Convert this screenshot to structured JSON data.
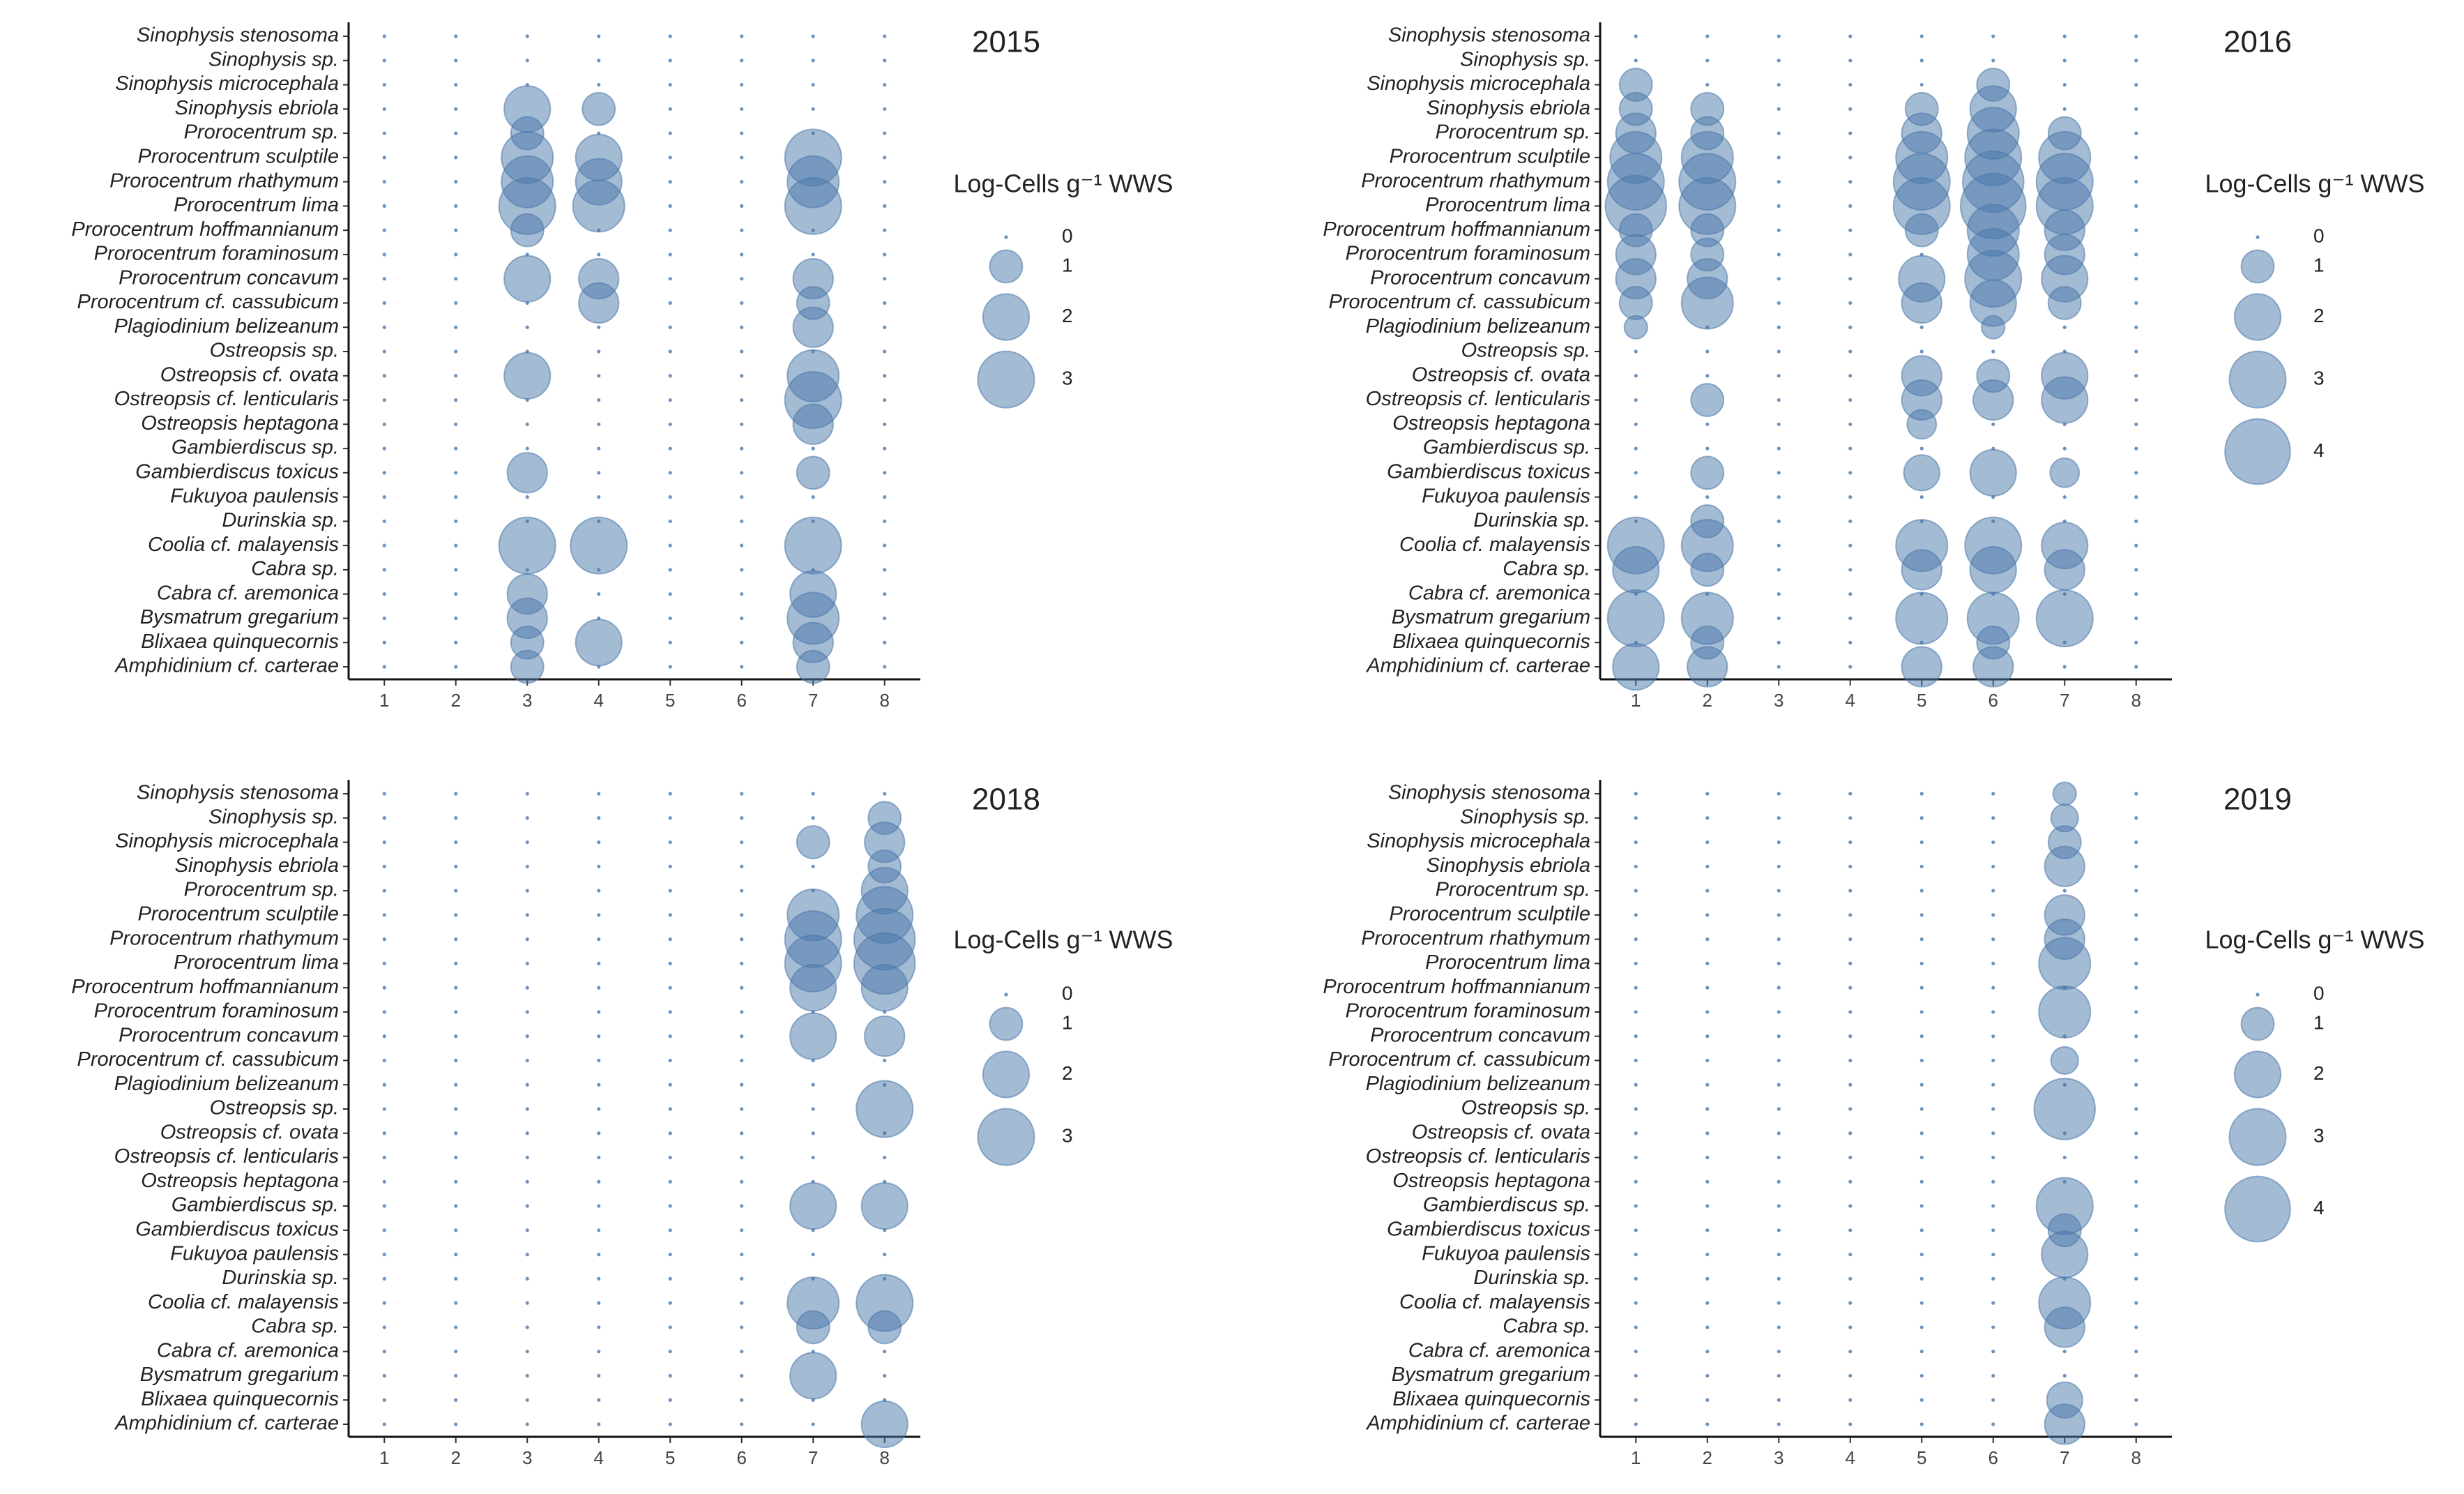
{
  "chart_data": [
    {
      "type": "bubble",
      "title": "2015",
      "categories": [
        "Sinophysis stenosoma",
        "Sinophysis sp.",
        "Sinophysis microcephala",
        "Sinophysis ebriola",
        "Prorocentrum sp.",
        "Prorocentrum sculptile",
        "Prorocentrum rhathymum",
        "Prorocentrum lima",
        "Prorocentrum hoffmannianum",
        "Prorocentrum foraminosum",
        "Prorocentrum concavum",
        "Prorocentrum cf. cassubicum",
        "Plagiodinium belizeanum",
        "Ostreopsis sp.",
        "Ostreopsis cf. ovata",
        "Ostreopsis cf. lenticularis",
        "Ostreopsis heptagona",
        "Gambierdiscus sp.",
        "Gambierdiscus toxicus",
        "Fukuyoa paulensis",
        "Durinskia sp.",
        "Coolia cf. malayensis",
        "Cabra sp.",
        "Cabra cf. aremonica",
        "Bysmatrum gregarium",
        "Blixaea quinquecornis",
        "Amphidinium cf. carterae"
      ],
      "x": [
        1,
        2,
        3,
        4,
        5,
        6,
        7,
        8
      ],
      "xlim": [
        0.5,
        8.5
      ],
      "xticks": [
        1,
        2,
        3,
        4,
        5,
        6,
        7,
        8
      ],
      "color": "#4a78aa",
      "values": [
        [
          0,
          0,
          0,
          0,
          0,
          0,
          0,
          0
        ],
        [
          0,
          0,
          0,
          0,
          0,
          0,
          0,
          0
        ],
        [
          0,
          0,
          0,
          0,
          0,
          0,
          0,
          0
        ],
        [
          0,
          0,
          2,
          1,
          0,
          0,
          0,
          0
        ],
        [
          0,
          0,
          1,
          0,
          0,
          0,
          0,
          0
        ],
        [
          0,
          0,
          2.5,
          2,
          0,
          0,
          3,
          0
        ],
        [
          0,
          0,
          2.5,
          2,
          0,
          0,
          2.5,
          0
        ],
        [
          0,
          0,
          3,
          2.5,
          0,
          0,
          3,
          0
        ],
        [
          0,
          0,
          1,
          0,
          0,
          0,
          0,
          0
        ],
        [
          0,
          0,
          0,
          0,
          0,
          0,
          0,
          0
        ],
        [
          0,
          0,
          2,
          1.5,
          0,
          0,
          1.5,
          0
        ],
        [
          0,
          0,
          0,
          1.5,
          0,
          0,
          1,
          0
        ],
        [
          0,
          0,
          0,
          0,
          0,
          0,
          1.5,
          0
        ],
        [
          0,
          0,
          0,
          0,
          0,
          0,
          0,
          0
        ],
        [
          0,
          0,
          2,
          0,
          0,
          0,
          2.5,
          0
        ],
        [
          0,
          0,
          0,
          0,
          0,
          0,
          3,
          0
        ],
        [
          0,
          0,
          0,
          0,
          0,
          0,
          1.5,
          0
        ],
        [
          0,
          0,
          0,
          0,
          0,
          0,
          0,
          0
        ],
        [
          0,
          0,
          1.5,
          0,
          0,
          0,
          1,
          0
        ],
        [
          0,
          0,
          0,
          0,
          0,
          0,
          0,
          0
        ],
        [
          0,
          0,
          0,
          0,
          0,
          0,
          0,
          0
        ],
        [
          0,
          0,
          3,
          3,
          0,
          0,
          3,
          0
        ],
        [
          0,
          0,
          0,
          0,
          0,
          0,
          0,
          0
        ],
        [
          0,
          0,
          1.5,
          0,
          0,
          0,
          2,
          0
        ],
        [
          0,
          0,
          1.5,
          0,
          0,
          0,
          2.5,
          0
        ],
        [
          0,
          0,
          1,
          2,
          0,
          0,
          1.5,
          0
        ],
        [
          0,
          0,
          1,
          0,
          0,
          0,
          1,
          0
        ]
      ],
      "size_legend_title": "Log-Cells g⁻¹ WWS",
      "size_legend": [
        0,
        1,
        2,
        3
      ]
    },
    {
      "type": "bubble",
      "title": "2016",
      "categories": [
        "Sinophysis stenosoma",
        "Sinophysis sp.",
        "Sinophysis microcephala",
        "Sinophysis ebriola",
        "Prorocentrum sp.",
        "Prorocentrum sculptile",
        "Prorocentrum rhathymum",
        "Prorocentrum lima",
        "Prorocentrum hoffmannianum",
        "Prorocentrum foraminosum",
        "Prorocentrum concavum",
        "Prorocentrum cf. cassubicum",
        "Plagiodinium belizeanum",
        "Ostreopsis sp.",
        "Ostreopsis cf. ovata",
        "Ostreopsis cf. lenticularis",
        "Ostreopsis heptagona",
        "Gambierdiscus sp.",
        "Gambierdiscus toxicus",
        "Fukuyoa paulensis",
        "Durinskia sp.",
        "Coolia cf. malayensis",
        "Cabra sp.",
        "Cabra cf. aremonica",
        "Bysmatrum gregarium",
        "Blixaea quinquecornis",
        "Amphidinium cf. carterae"
      ],
      "x": [
        1,
        2,
        3,
        4,
        5,
        6,
        7,
        8
      ],
      "xlim": [
        0.5,
        8.5
      ],
      "xticks": [
        1,
        2,
        3,
        4,
        5,
        6,
        7,
        8
      ],
      "color": "#4a78aa",
      "values": [
        [
          0,
          0,
          0,
          0,
          0,
          0,
          0,
          0
        ],
        [
          0,
          0,
          0,
          0,
          0,
          0,
          0,
          0
        ],
        [
          1,
          0,
          0,
          0,
          0,
          1,
          0,
          0
        ],
        [
          1,
          1,
          0,
          0,
          1,
          2,
          0,
          0
        ],
        [
          1.5,
          1,
          0,
          0,
          1.5,
          2.5,
          1,
          0
        ],
        [
          2.5,
          2.5,
          0,
          0,
          2.5,
          3,
          2.5,
          0
        ],
        [
          3,
          3,
          0,
          0,
          3,
          3.5,
          3,
          0
        ],
        [
          3.5,
          3,
          0,
          0,
          3,
          4,
          3,
          0
        ],
        [
          1,
          1,
          0,
          0,
          1,
          2.5,
          1.5,
          0
        ],
        [
          1.5,
          1,
          0,
          0,
          0,
          2.5,
          1.5,
          0
        ],
        [
          1.5,
          1.5,
          0,
          0,
          2,
          3,
          2,
          0
        ],
        [
          1,
          2.5,
          0,
          0,
          1.5,
          2,
          1,
          0
        ],
        [
          0.5,
          0,
          0,
          0,
          0,
          0.5,
          0,
          0
        ],
        [
          0,
          0,
          0,
          0,
          0,
          0,
          0,
          0
        ],
        [
          0,
          0,
          0,
          0,
          1.5,
          1,
          2,
          0
        ],
        [
          0,
          1,
          0,
          0,
          1.5,
          1.5,
          2,
          0
        ],
        [
          0,
          0,
          0,
          0,
          0.8,
          0,
          0,
          0
        ],
        [
          0,
          0,
          0,
          0,
          0,
          0,
          0,
          0
        ],
        [
          0,
          1,
          0,
          0,
          1.2,
          2,
          0.8,
          0
        ],
        [
          0,
          0,
          0,
          0,
          0,
          0,
          0,
          0
        ],
        [
          0,
          1,
          0,
          0,
          0,
          0,
          0,
          0
        ],
        [
          3,
          2.5,
          0,
          0,
          2.5,
          3,
          2,
          0
        ],
        [
          2,
          1,
          0,
          0,
          1.5,
          2,
          1.5,
          0
        ],
        [
          0,
          0,
          0,
          0,
          0,
          0,
          0,
          0
        ],
        [
          3,
          2.5,
          0,
          0,
          2.5,
          2.5,
          3,
          0
        ],
        [
          0,
          1,
          0,
          0,
          0,
          1,
          0,
          0
        ],
        [
          2,
          1.5,
          0,
          0,
          1.5,
          1.5,
          0,
          0
        ]
      ],
      "size_legend_title": "Log-Cells g⁻¹ WWS",
      "size_legend": [
        0,
        1,
        2,
        3,
        4
      ]
    },
    {
      "type": "bubble",
      "title": "2018",
      "categories": [
        "Sinophysis stenosoma",
        "Sinophysis sp.",
        "Sinophysis microcephala",
        "Sinophysis ebriola",
        "Prorocentrum sp.",
        "Prorocentrum sculptile",
        "Prorocentrum rhathymum",
        "Prorocentrum lima",
        "Prorocentrum hoffmannianum",
        "Prorocentrum foraminosum",
        "Prorocentrum concavum",
        "Prorocentrum cf. cassubicum",
        "Plagiodinium belizeanum",
        "Ostreopsis sp.",
        "Ostreopsis cf. ovata",
        "Ostreopsis cf. lenticularis",
        "Ostreopsis heptagona",
        "Gambierdiscus sp.",
        "Gambierdiscus toxicus",
        "Fukuyoa paulensis",
        "Durinskia sp.",
        "Coolia cf. malayensis",
        "Cabra sp.",
        "Cabra cf. aremonica",
        "Bysmatrum gregarium",
        "Blixaea quinquecornis",
        "Amphidinium cf. carterae"
      ],
      "x": [
        1,
        2,
        3,
        4,
        5,
        6,
        7,
        8
      ],
      "xlim": [
        0.5,
        8.5
      ],
      "xticks": [
        1,
        2,
        3,
        4,
        5,
        6,
        7,
        8
      ],
      "color": "#4a78aa",
      "values": [
        [
          0,
          0,
          0,
          0,
          0,
          0,
          0,
          0
        ],
        [
          0,
          0,
          0,
          0,
          0,
          0,
          0,
          1
        ],
        [
          0,
          0,
          0,
          0,
          0,
          0,
          1,
          1.5
        ],
        [
          0,
          0,
          0,
          0,
          0,
          0,
          0,
          1
        ],
        [
          0,
          0,
          0,
          0,
          0,
          0,
          0,
          2
        ],
        [
          0,
          0,
          0,
          0,
          0,
          0,
          2.5,
          3
        ],
        [
          0,
          0,
          0,
          0,
          0,
          0,
          3,
          3.5
        ],
        [
          0,
          0,
          0,
          0,
          0,
          0,
          3,
          3.5
        ],
        [
          0,
          0,
          0,
          0,
          0,
          0,
          2,
          2
        ],
        [
          0,
          0,
          0,
          0,
          0,
          0,
          0,
          0
        ],
        [
          0,
          0,
          0,
          0,
          0,
          0,
          2,
          1.5
        ],
        [
          0,
          0,
          0,
          0,
          0,
          0,
          0,
          0
        ],
        [
          0,
          0,
          0,
          0,
          0,
          0,
          0,
          0
        ],
        [
          0,
          0,
          0,
          0,
          0,
          0,
          0,
          3
        ],
        [
          0,
          0,
          0,
          0,
          0,
          0,
          0,
          0
        ],
        [
          0,
          0,
          0,
          0,
          0,
          0,
          0,
          0
        ],
        [
          0,
          0,
          0,
          0,
          0,
          0,
          0,
          0
        ],
        [
          0,
          0,
          0,
          0,
          0,
          0,
          2,
          2
        ],
        [
          0,
          0,
          0,
          0,
          0,
          0,
          0,
          0
        ],
        [
          0,
          0,
          0,
          0,
          0,
          0,
          0,
          0
        ],
        [
          0,
          0,
          0,
          0,
          0,
          0,
          0,
          0
        ],
        [
          0,
          0,
          0,
          0,
          0,
          0,
          2.5,
          3
        ],
        [
          0,
          0,
          0,
          0,
          0,
          0,
          1,
          1
        ],
        [
          0,
          0,
          0,
          0,
          0,
          0,
          0,
          0
        ],
        [
          0,
          0,
          0,
          0,
          0,
          0,
          2,
          0
        ],
        [
          0,
          0,
          0,
          0,
          0,
          0,
          0,
          0
        ],
        [
          0,
          0,
          0,
          0,
          0,
          0,
          0,
          2
        ]
      ],
      "size_legend_title": "Log-Cells g⁻¹ WWS",
      "size_legend": [
        0,
        1,
        2,
        3
      ]
    },
    {
      "type": "bubble",
      "title": "2019",
      "categories": [
        "Sinophysis stenosoma",
        "Sinophysis sp.",
        "Sinophysis microcephala",
        "Sinophysis ebriola",
        "Prorocentrum sp.",
        "Prorocentrum sculptile",
        "Prorocentrum rhathymum",
        "Prorocentrum lima",
        "Prorocentrum hoffmannianum",
        "Prorocentrum foraminosum",
        "Prorocentrum concavum",
        "Prorocentrum cf. cassubicum",
        "Plagiodinium belizeanum",
        "Ostreopsis sp.",
        "Ostreopsis cf. ovata",
        "Ostreopsis cf. lenticularis",
        "Ostreopsis heptagona",
        "Gambierdiscus sp.",
        "Gambierdiscus toxicus",
        "Fukuyoa paulensis",
        "Durinskia sp.",
        "Coolia cf. malayensis",
        "Cabra sp.",
        "Cabra cf. aremonica",
        "Bysmatrum gregarium",
        "Blixaea quinquecornis",
        "Amphidinium cf. carterae"
      ],
      "x": [
        1,
        2,
        3,
        4,
        5,
        6,
        7,
        8
      ],
      "xlim": [
        0.5,
        8.5
      ],
      "xticks": [
        1,
        2,
        3,
        4,
        5,
        6,
        7,
        8
      ],
      "color": "#4a78aa",
      "values": [
        [
          0,
          0,
          0,
          0,
          0,
          0,
          0.5,
          0
        ],
        [
          0,
          0,
          0,
          0,
          0,
          0,
          0.7,
          0
        ],
        [
          0,
          0,
          0,
          0,
          0,
          0,
          1,
          0
        ],
        [
          0,
          0,
          0,
          0,
          0,
          0,
          1.5,
          0
        ],
        [
          0,
          0,
          0,
          0,
          0,
          0,
          0,
          0
        ],
        [
          0,
          0,
          0,
          0,
          0,
          0,
          1.5,
          0
        ],
        [
          0,
          0,
          0,
          0,
          0,
          0,
          1.5,
          0
        ],
        [
          0,
          0,
          0,
          0,
          0,
          0,
          2.5,
          0
        ],
        [
          0,
          0,
          0,
          0,
          0,
          0,
          0,
          0
        ],
        [
          0,
          0,
          0,
          0,
          0,
          0,
          2.5,
          0
        ],
        [
          0,
          0,
          0,
          0,
          0,
          0,
          0,
          0
        ],
        [
          0,
          0,
          0,
          0,
          0,
          0,
          0.7,
          0
        ],
        [
          0,
          0,
          0,
          0,
          0,
          0,
          0,
          0
        ],
        [
          0,
          0,
          0,
          0,
          0,
          0,
          3.5,
          0
        ],
        [
          0,
          0,
          0,
          0,
          0,
          0,
          0,
          0
        ],
        [
          0,
          0,
          0,
          0,
          0,
          0,
          0,
          0
        ],
        [
          0,
          0,
          0,
          0,
          0,
          0,
          0,
          0
        ],
        [
          0,
          0,
          0,
          0,
          0,
          0,
          3,
          0
        ],
        [
          0,
          0,
          0,
          0,
          0,
          0,
          1,
          0
        ],
        [
          0,
          0,
          0,
          0,
          0,
          0,
          2,
          0
        ],
        [
          0,
          0,
          0,
          0,
          0,
          0,
          0,
          0
        ],
        [
          0,
          0,
          0,
          0,
          0,
          0,
          2.5,
          0
        ],
        [
          0,
          0,
          0,
          0,
          0,
          0,
          1.5,
          0
        ],
        [
          0,
          0,
          0,
          0,
          0,
          0,
          0,
          0
        ],
        [
          0,
          0,
          0,
          0,
          0,
          0,
          0,
          0
        ],
        [
          0,
          0,
          0,
          0,
          0,
          0,
          1.2,
          0
        ],
        [
          0,
          0,
          0,
          0,
          0,
          0,
          1.5,
          0
        ]
      ],
      "size_legend_title": "Log-Cells g⁻¹ WWS",
      "size_legend": [
        0,
        1,
        2,
        3,
        4
      ]
    }
  ]
}
